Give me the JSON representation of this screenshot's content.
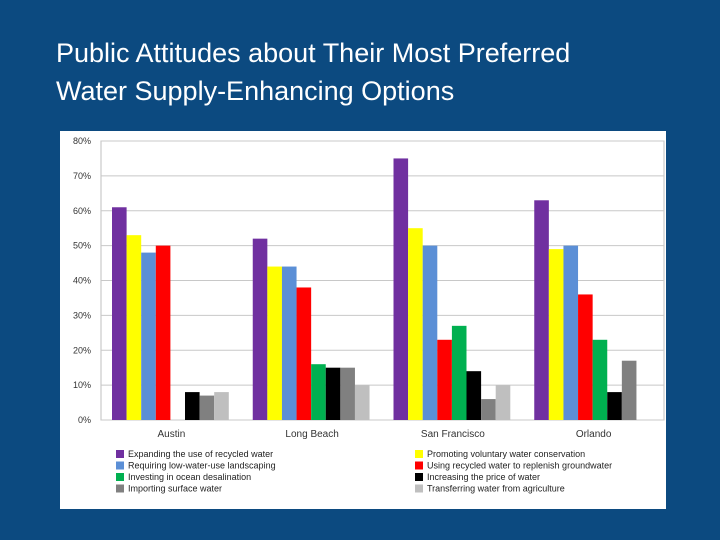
{
  "slide": {
    "title_line1": "Public Attitudes about Their Most Preferred",
    "title_line2": "Water Supply-Enhancing Options",
    "background": "#0c4a80"
  },
  "chart_data": {
    "type": "bar",
    "categories": [
      "Austin",
      "Long Beach",
      "San Francisco",
      "Orlando"
    ],
    "ylim": [
      0,
      80
    ],
    "yticks": [
      "0%",
      "10%",
      "20%",
      "30%",
      "40%",
      "50%",
      "60%",
      "70%",
      "80%"
    ],
    "grid": true,
    "legend_position": "bottom",
    "series": [
      {
        "name": "Expanding the use of recycled water",
        "color": "#7030a0",
        "values": [
          61,
          52,
          75,
          63
        ]
      },
      {
        "name": "Promoting voluntary water conservation",
        "color": "#ffff00",
        "values": [
          53,
          44,
          55,
          49
        ]
      },
      {
        "name": "Requiring low-water-use landscaping",
        "color": "#5b8fd6",
        "values": [
          48,
          44,
          50,
          50
        ]
      },
      {
        "name": "Using recycled water to replenish groundwater",
        "color": "#ff0000",
        "values": [
          50,
          38,
          23,
          36
        ]
      },
      {
        "name": "Investing in ocean desalination",
        "color": "#00b050",
        "values": [
          null,
          16,
          27,
          23
        ]
      },
      {
        "name": "Increasing the price of water",
        "color": "#000000",
        "values": [
          8,
          15,
          14,
          8
        ]
      },
      {
        "name": "Importing surface water",
        "color": "#808080",
        "values": [
          7,
          15,
          6,
          17
        ]
      },
      {
        "name": "Transferring water from agriculture",
        "color": "#bfbfbf",
        "values": [
          8,
          10,
          10,
          null
        ]
      }
    ]
  }
}
